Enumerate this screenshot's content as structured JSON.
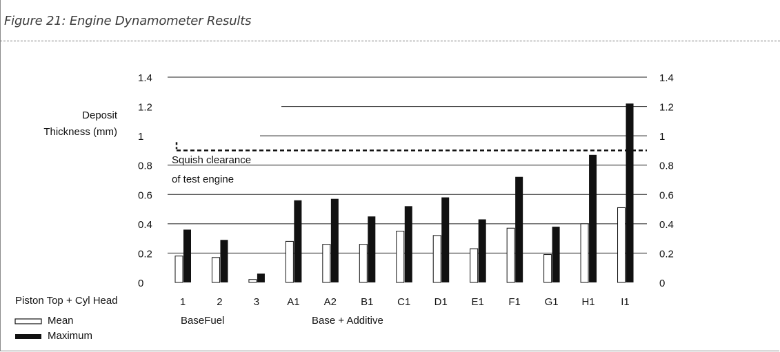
{
  "figure": {
    "title": "Figure 21: Engine Dynamometer Results"
  },
  "chart_data": {
    "type": "bar",
    "categories": [
      "1",
      "2",
      "3",
      "A1",
      "A2",
      "B1",
      "C1",
      "D1",
      "E1",
      "F1",
      "G1",
      "H1",
      "I1"
    ],
    "series": [
      {
        "name": "Mean",
        "color": "#ffffff",
        "values": [
          0.18,
          0.17,
          0.02,
          0.28,
          0.26,
          0.26,
          0.35,
          0.32,
          0.23,
          0.37,
          0.19,
          0.4,
          0.51
        ]
      },
      {
        "name": "Maximum",
        "color": "#111111",
        "values": [
          0.36,
          0.29,
          0.06,
          0.56,
          0.57,
          0.45,
          0.52,
          0.58,
          0.43,
          0.72,
          0.38,
          0.87,
          1.22
        ]
      }
    ],
    "ylabel_line1": "Deposit",
    "ylabel_line2": "Thickness (mm)",
    "ylim": [
      0,
      1.4
    ],
    "y_ticks": [
      "0",
      "0.2",
      "0.4",
      "0.6",
      "0.8",
      "1",
      "1.2",
      "1.4"
    ],
    "grid": true,
    "reference_line": {
      "value": 0.9,
      "label_line1": "Squish clearance",
      "label_line2": "of test engine"
    },
    "group_labels": [
      "BaseFuel",
      "Base + Additive"
    ],
    "legend": {
      "title": "Piston Top + Cyl Head",
      "placement": "bottom-left",
      "items": [
        "Mean",
        "Maximum"
      ]
    }
  }
}
